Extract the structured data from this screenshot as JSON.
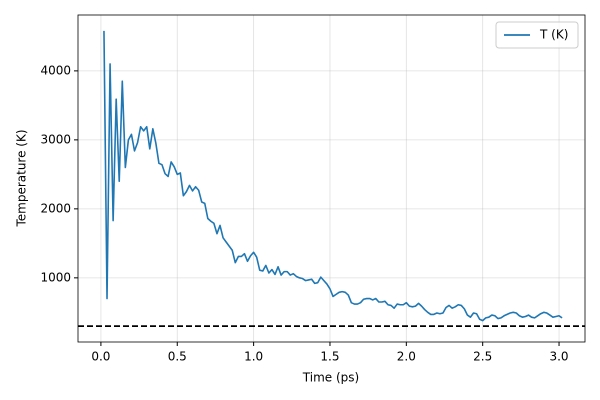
{
  "chart_data": {
    "type": "line",
    "xlabel": "Time (ps)",
    "ylabel": "Temperature (K)",
    "x": [
      0.02,
      0.04,
      0.06,
      0.08,
      0.1,
      0.12,
      0.14,
      0.16,
      0.18,
      0.2,
      0.22,
      0.24,
      0.26,
      0.28,
      0.3,
      0.32,
      0.34,
      0.36,
      0.38,
      0.4,
      0.42,
      0.44,
      0.46,
      0.48,
      0.5,
      0.52,
      0.54,
      0.56,
      0.58,
      0.6,
      0.62,
      0.64,
      0.66,
      0.68,
      0.7,
      0.72,
      0.74,
      0.76,
      0.78,
      0.8,
      0.82,
      0.84,
      0.86,
      0.88,
      0.9,
      0.92,
      0.94,
      0.96,
      0.98,
      1.0,
      1.02,
      1.04,
      1.06,
      1.08,
      1.1,
      1.12,
      1.14,
      1.16,
      1.18,
      1.2,
      1.22,
      1.24,
      1.26,
      1.28,
      1.3,
      1.32,
      1.34,
      1.36,
      1.38,
      1.4,
      1.42,
      1.44,
      1.46,
      1.48,
      1.5,
      1.52,
      1.54,
      1.56,
      1.58,
      1.6,
      1.62,
      1.64,
      1.66,
      1.68,
      1.7,
      1.72,
      1.74,
      1.76,
      1.78,
      1.8,
      1.82,
      1.84,
      1.86,
      1.88,
      1.9,
      1.92,
      1.94,
      1.96,
      1.98,
      2.0,
      2.02,
      2.04,
      2.06,
      2.08,
      2.1,
      2.12,
      2.14,
      2.16,
      2.18,
      2.2,
      2.22,
      2.24,
      2.26,
      2.28,
      2.3,
      2.32,
      2.34,
      2.36,
      2.38,
      2.4,
      2.42,
      2.44,
      2.46,
      2.48,
      2.5,
      2.52,
      2.54,
      2.56,
      2.58,
      2.6,
      2.62,
      2.64,
      2.66,
      2.68,
      2.7,
      2.72,
      2.74,
      2.76,
      2.78,
      2.8,
      2.82,
      2.84,
      2.86,
      2.88,
      2.9,
      2.92,
      2.94,
      2.96,
      2.98,
      3.0,
      3.02
    ],
    "series": [
      {
        "name": "T (K)",
        "color": "#1f77b4",
        "values": [
          4580,
          700,
          4100,
          1830,
          3590,
          2400,
          3850,
          2600,
          3000,
          3080,
          2840,
          2960,
          3190,
          3130,
          3190,
          2870,
          3160,
          2950,
          2660,
          2640,
          2510,
          2470,
          2680,
          2610,
          2500,
          2520,
          2190,
          2250,
          2340,
          2260,
          2320,
          2270,
          2100,
          2080,
          1860,
          1820,
          1790,
          1640,
          1760,
          1580,
          1520,
          1460,
          1400,
          1220,
          1310,
          1310,
          1350,
          1240,
          1320,
          1370,
          1300,
          1110,
          1100,
          1180,
          1070,
          1120,
          1050,
          1160,
          1040,
          1090,
          1090,
          1040,
          1060,
          1020,
          1000,
          990,
          960,
          970,
          980,
          920,
          930,
          1010,
          960,
          910,
          840,
          730,
          760,
          790,
          800,
          790,
          750,
          640,
          620,
          620,
          640,
          690,
          700,
          700,
          680,
          700,
          650,
          650,
          660,
          610,
          600,
          560,
          620,
          610,
          610,
          640,
          590,
          580,
          590,
          630,
          590,
          540,
          500,
          470,
          470,
          490,
          480,
          490,
          570,
          600,
          560,
          580,
          610,
          600,
          550,
          460,
          430,
          490,
          480,
          400,
          380,
          420,
          430,
          460,
          450,
          410,
          420,
          450,
          470,
          490,
          500,
          490,
          450,
          430,
          440,
          460,
          430,
          420,
          450,
          480,
          500,
          490,
          460,
          430,
          440,
          450,
          420
        ]
      }
    ],
    "hline": {
      "value": 300,
      "color": "#000000",
      "dashed": true
    },
    "xlim": [
      -0.15,
      3.17
    ],
    "xticks": [
      {
        "value": 0,
        "label": "0.0"
      },
      0.5,
      {
        "value": 1,
        "label": "1.0"
      },
      1.5,
      {
        "value": 2,
        "label": "2.0"
      },
      2.5,
      {
        "value": 3,
        "label": "3.0"
      }
    ],
    "ylim": [
      70,
      4810
    ],
    "yticks": [
      1000,
      2000,
      3000,
      4000
    ],
    "grid": true,
    "legend": "upper right"
  }
}
